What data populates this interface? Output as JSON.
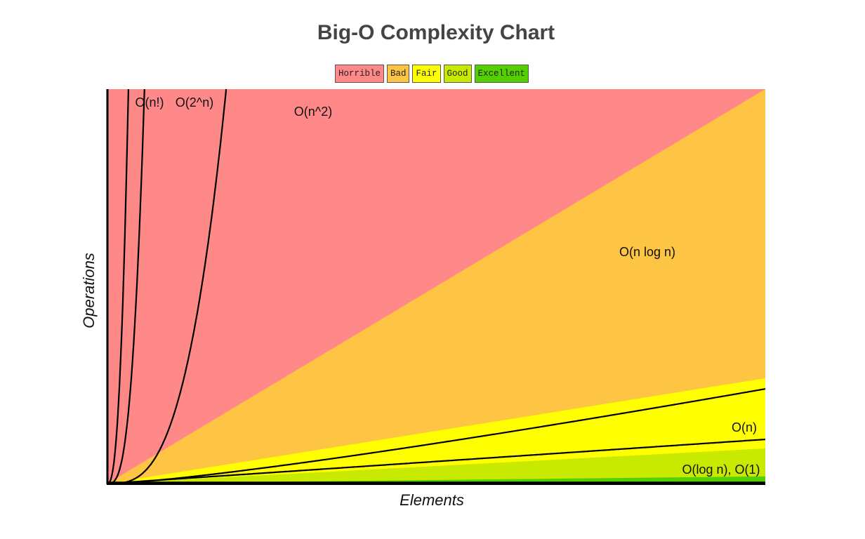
{
  "chart_data": {
    "type": "line",
    "title": "Big-O Complexity Chart",
    "xlabel": "Elements",
    "ylabel": "Operations",
    "legend": {
      "placement": "top-center",
      "items": [
        {
          "label": "Horrible",
          "color": "#ff8989"
        },
        {
          "label": "Bad",
          "color": "#fec443"
        },
        {
          "label": "Fair",
          "color": "#ffff00"
        },
        {
          "label": "Good",
          "color": "#c8ea00"
        },
        {
          "label": "Excellent",
          "color": "#53d000"
        }
      ]
    },
    "x_range": [
      0,
      100
    ],
    "y_range": [
      0,
      1000
    ],
    "regions": [
      {
        "name": "Horrible",
        "color": "#ff8989",
        "upper_slope": null
      },
      {
        "name": "Bad",
        "color": "#fec443",
        "upper_slope": 10
      },
      {
        "name": "Fair",
        "color": "#ffff00",
        "upper_slope": 2.67
      },
      {
        "name": "Good",
        "color": "#c8ea00",
        "upper_slope": 0.89
      },
      {
        "name": "Excellent",
        "color": "#53d000",
        "upper_slope": 0.18
      }
    ],
    "series": [
      {
        "name": "O(n!)",
        "label": "O(n!)",
        "function": "factorial"
      },
      {
        "name": "O(2^n)",
        "label": "O(2^n)",
        "function": "exponential"
      },
      {
        "name": "O(n^2)",
        "label": "O(n^2)",
        "function": "quadratic"
      },
      {
        "name": "O(n log n)",
        "label": "O(n log n)",
        "function": "nlogn"
      },
      {
        "name": "O(n)",
        "label": "O(n)",
        "function": "linear"
      },
      {
        "name": "O(log n), O(1)",
        "label": "O(log n), O(1)",
        "function": "constant"
      }
    ]
  }
}
